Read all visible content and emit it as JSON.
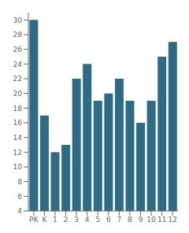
{
  "chart_data": {
    "type": "bar",
    "categories": [
      "PK",
      "K",
      "1",
      "2",
      "3",
      "4",
      "5",
      "6",
      "7",
      "8",
      "9",
      "10",
      "11",
      "12"
    ],
    "values": [
      30,
      17,
      12,
      13,
      22,
      24,
      19,
      20,
      22,
      19,
      16,
      19,
      25,
      27
    ],
    "color": "#2e6b85",
    "ylim": [
      4,
      31
    ],
    "yticks": [
      4,
      6,
      8,
      10,
      12,
      14,
      16,
      18,
      20,
      22,
      24,
      26,
      28,
      30
    ],
    "grid": false
  }
}
